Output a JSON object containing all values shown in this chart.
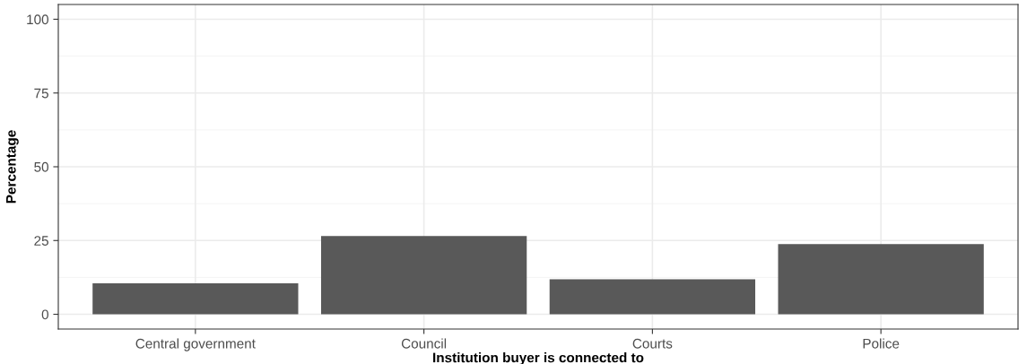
{
  "chart_data": {
    "type": "bar",
    "xlabel": "Institution buyer is connected to",
    "ylabel": "Percentage",
    "categories": [
      "Central government",
      "Council",
      "Courts",
      "Police"
    ],
    "values": [
      10.5,
      26.5,
      11.9,
      23.8
    ],
    "color": "#595959",
    "ylim": [
      -5,
      105
    ],
    "yticks": [
      0,
      25,
      50,
      75,
      100
    ],
    "grid": true
  }
}
